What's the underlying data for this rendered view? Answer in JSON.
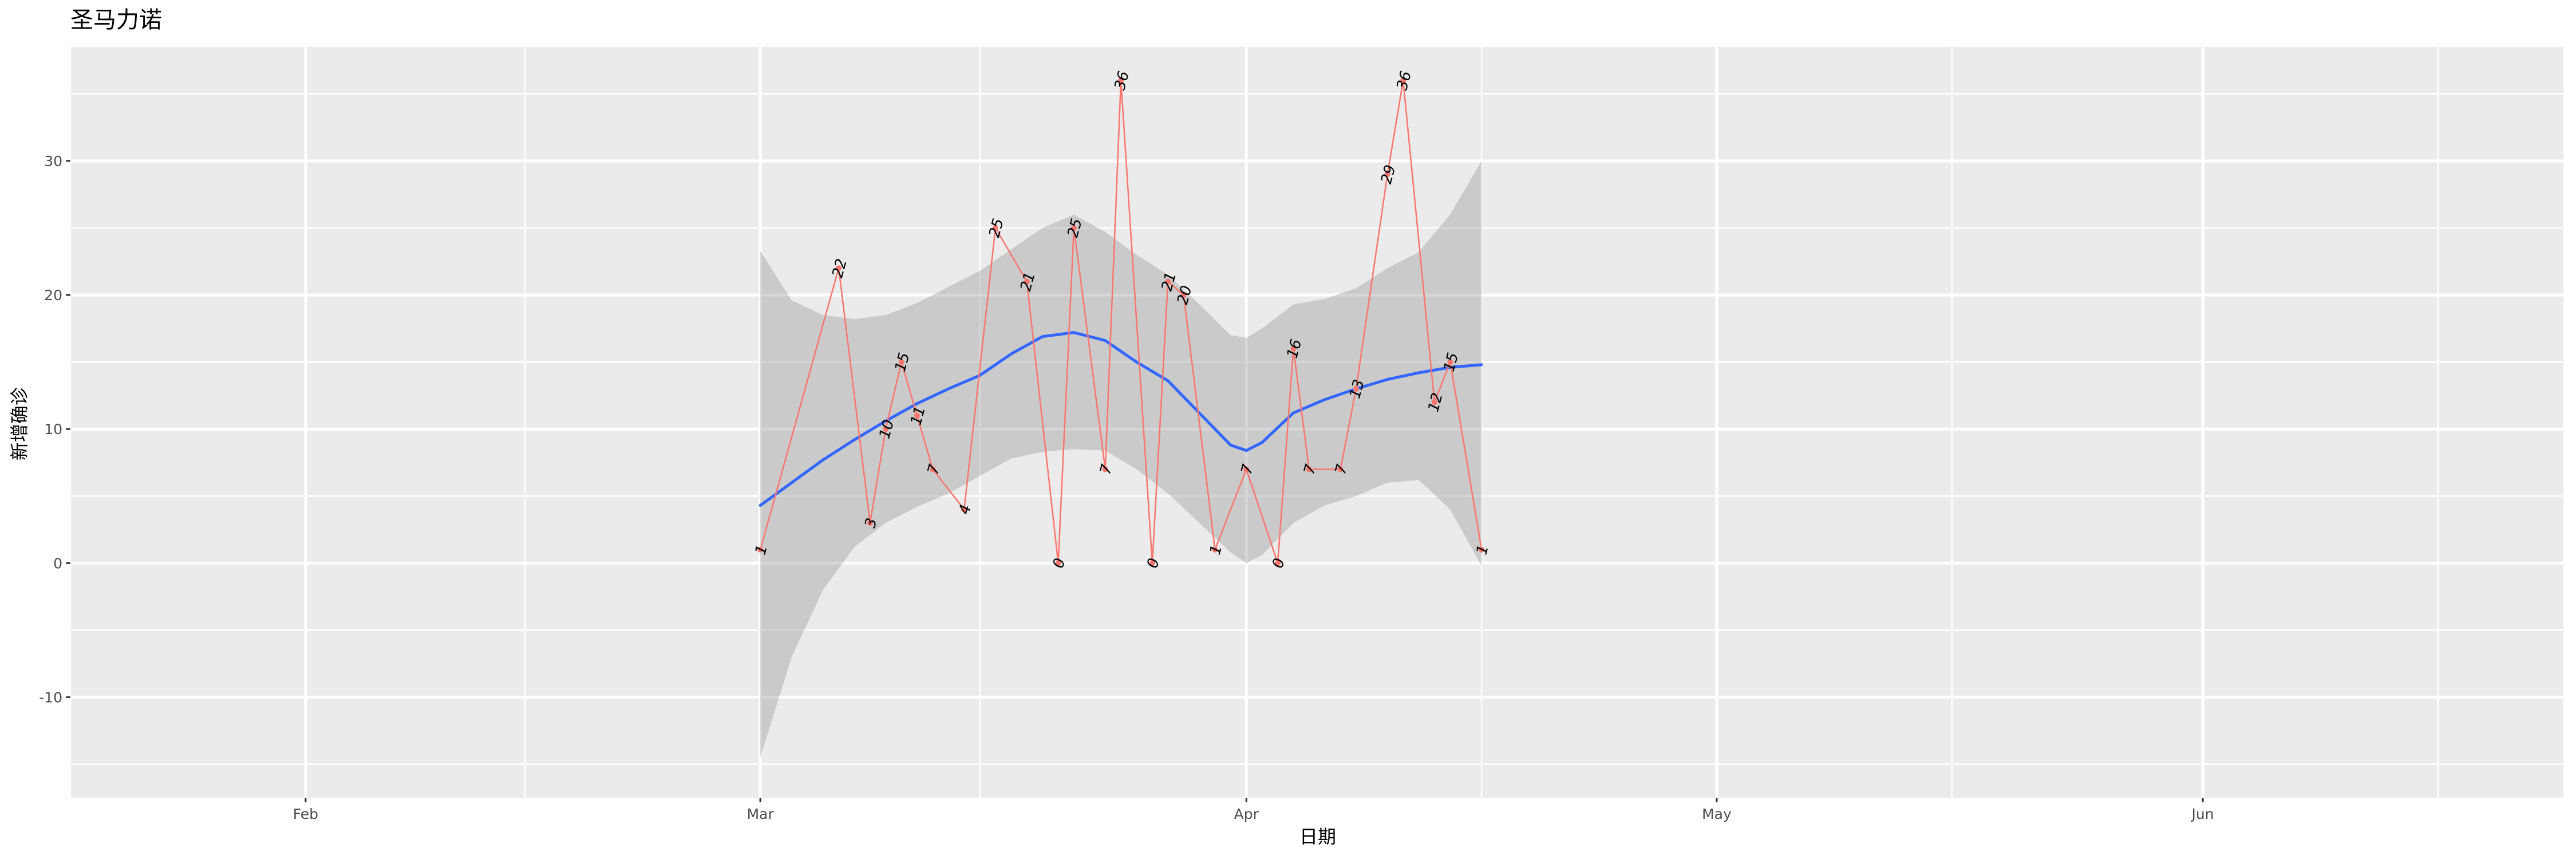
{
  "chart_data": {
    "type": "line",
    "title": "圣马力诺",
    "xlabel": "日期",
    "ylabel": "新增确诊",
    "x_axis": {
      "type": "date",
      "range": [
        "2020-01-17",
        "2020-06-24"
      ],
      "ticks": [
        {
          "date": "2020-02-01",
          "label": "Feb"
        },
        {
          "date": "2020-03-01",
          "label": "Mar"
        },
        {
          "date": "2020-04-01",
          "label": "Apr"
        },
        {
          "date": "2020-05-01",
          "label": "May"
        },
        {
          "date": "2020-06-01",
          "label": "Jun"
        }
      ],
      "minor_ticks": [
        "2020-01-17",
        "2020-02-15",
        "2020-03-15",
        "2020-04-16",
        "2020-05-16",
        "2020-06-16"
      ]
    },
    "y_axis": {
      "range": [
        -17.5,
        38.5
      ],
      "ticks": [
        -10,
        0,
        10,
        20,
        30
      ],
      "minor_ticks": [
        -15,
        -5,
        5,
        15,
        25,
        35
      ]
    },
    "grid": true,
    "series": [
      {
        "type": "line",
        "color": "#f8766d",
        "points": [
          {
            "date": "2020-03-01",
            "value": 1
          },
          {
            "date": "2020-03-06",
            "value": 22
          },
          {
            "date": "2020-03-08",
            "value": 3
          },
          {
            "date": "2020-03-09",
            "value": 10
          },
          {
            "date": "2020-03-10",
            "value": 15
          },
          {
            "date": "2020-03-11",
            "value": 11
          },
          {
            "date": "2020-03-12",
            "value": 7
          },
          {
            "date": "2020-03-14",
            "value": 4
          },
          {
            "date": "2020-03-16",
            "value": 25
          },
          {
            "date": "2020-03-18",
            "value": 21
          },
          {
            "date": "2020-03-20",
            "value": 0
          },
          {
            "date": "2020-03-21",
            "value": 25
          },
          {
            "date": "2020-03-23",
            "value": 7
          },
          {
            "date": "2020-03-24",
            "value": 36
          },
          {
            "date": "2020-03-26",
            "value": 0
          },
          {
            "date": "2020-03-27",
            "value": 21
          },
          {
            "date": "2020-03-28",
            "value": 20
          },
          {
            "date": "2020-03-30",
            "value": 1
          },
          {
            "date": "2020-04-01",
            "value": 7
          },
          {
            "date": "2020-04-03",
            "value": 0
          },
          {
            "date": "2020-04-04",
            "value": 16
          },
          {
            "date": "2020-04-05",
            "value": 7
          },
          {
            "date": "2020-04-07",
            "value": 7
          },
          {
            "date": "2020-04-08",
            "value": 13
          },
          {
            "date": "2020-04-10",
            "value": 29
          },
          {
            "date": "2020-04-11",
            "value": 36
          },
          {
            "date": "2020-04-13",
            "value": 12
          },
          {
            "date": "2020-04-14",
            "value": 15
          },
          {
            "date": "2020-04-16",
            "value": 1
          }
        ]
      },
      {
        "type": "smooth",
        "color": "#3366ff",
        "band_color": "#999999",
        "points": [
          {
            "date": "2020-03-01",
            "value": 4.3,
            "lower": -14.5,
            "upper": 23.3
          },
          {
            "date": "2020-03-03",
            "value": 6.0,
            "lower": -7.0,
            "upper": 19.6
          },
          {
            "date": "2020-03-05",
            "value": 7.7,
            "lower": -2.0,
            "upper": 18.5
          },
          {
            "date": "2020-03-07",
            "value": 9.2,
            "lower": 1.2,
            "upper": 18.2
          },
          {
            "date": "2020-03-09",
            "value": 10.6,
            "lower": 3.0,
            "upper": 18.5
          },
          {
            "date": "2020-03-11",
            "value": 11.9,
            "lower": 4.2,
            "upper": 19.4
          },
          {
            "date": "2020-03-13",
            "value": 13.0,
            "lower": 5.2,
            "upper": 20.6
          },
          {
            "date": "2020-03-15",
            "value": 14.0,
            "lower": 6.5,
            "upper": 21.8
          },
          {
            "date": "2020-03-17",
            "value": 15.6,
            "lower": 7.8,
            "upper": 23.4
          },
          {
            "date": "2020-03-19",
            "value": 16.9,
            "lower": 8.3,
            "upper": 25.0
          },
          {
            "date": "2020-03-21",
            "value": 17.2,
            "lower": 8.5,
            "upper": 26.0
          },
          {
            "date": "2020-03-23",
            "value": 16.6,
            "lower": 8.4,
            "upper": 24.7
          },
          {
            "date": "2020-03-25",
            "value": 15.0,
            "lower": 7.0,
            "upper": 23.0
          },
          {
            "date": "2020-03-27",
            "value": 13.6,
            "lower": 5.2,
            "upper": 21.5
          },
          {
            "date": "2020-03-29",
            "value": 11.2,
            "lower": 3.0,
            "upper": 19.3
          },
          {
            "date": "2020-03-31",
            "value": 8.8,
            "lower": 0.8,
            "upper": 17.0
          },
          {
            "date": "2020-04-01",
            "value": 8.4,
            "lower": 0.0,
            "upper": 16.8
          },
          {
            "date": "2020-04-02",
            "value": 9.0,
            "lower": 0.6,
            "upper": 17.5
          },
          {
            "date": "2020-04-04",
            "value": 11.2,
            "lower": 3.0,
            "upper": 19.3
          },
          {
            "date": "2020-04-06",
            "value": 12.2,
            "lower": 4.3,
            "upper": 19.7
          },
          {
            "date": "2020-04-08",
            "value": 13.0,
            "lower": 5.0,
            "upper": 20.5
          },
          {
            "date": "2020-04-10",
            "value": 13.7,
            "lower": 6.0,
            "upper": 22.0
          },
          {
            "date": "2020-04-12",
            "value": 14.2,
            "lower": 6.2,
            "upper": 23.2
          },
          {
            "date": "2020-04-14",
            "value": 14.6,
            "lower": 4.0,
            "upper": 26.0
          },
          {
            "date": "2020-04-16",
            "value": 14.8,
            "lower": -0.2,
            "upper": 30.0
          }
        ]
      }
    ]
  }
}
